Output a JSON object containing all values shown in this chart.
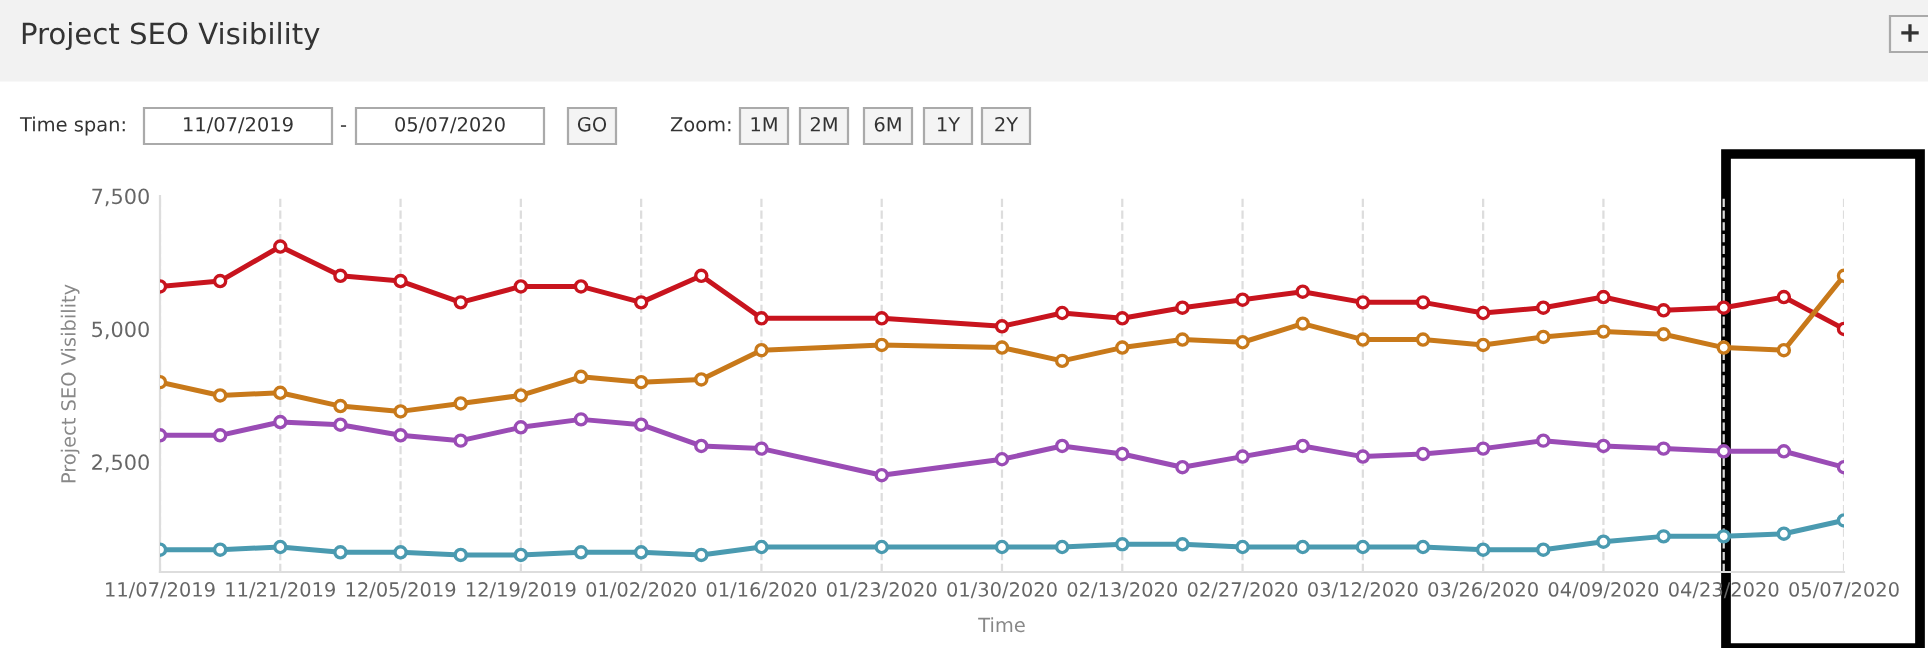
{
  "chart_data": {
    "type": "line",
    "title": "Project SEO Visibility",
    "xlabel": "Time",
    "ylabel": "Project SEO Visibility",
    "annotations": [
      "Time span:",
      "11/07/2019",
      "-",
      "05/07/2020",
      "GO",
      "Zoom:",
      "1M",
      "2M",
      "6M",
      "1Y",
      "2Y",
      "+"
    ],
    "categories": [
      "11/07/2019",
      null,
      "11/21/2019",
      null,
      "12/05/2019",
      null,
      "12/19/2019",
      null,
      "01/02/2020",
      null,
      "01/16/2020",
      null,
      "01/23/2020",
      null,
      "01/30/2020",
      null,
      "02/13/2020",
      null,
      "02/27/2020",
      null,
      "03/12/2020",
      null,
      "03/26/2020",
      null,
      "04/09/2020",
      null,
      "04/23/2020",
      null,
      "05/07/2020"
    ],
    "series": [
      {
        "color": "#c8141e",
        "values": [
          5800,
          5900,
          6550,
          6000,
          5900,
          5500,
          5800,
          5800,
          5500,
          6000,
          5200,
          null,
          5200,
          null,
          5050,
          5300,
          5200,
          5400,
          5550,
          5700,
          5500,
          5500,
          5300,
          5400,
          5600,
          5350,
          5400,
          5600,
          5000
        ]
      },
      {
        "color": "#c8791a",
        "values": [
          4000,
          3750,
          3800,
          3550,
          3450,
          3600,
          3750,
          4100,
          4000,
          4050,
          4600,
          null,
          4700,
          null,
          4650,
          4400,
          4650,
          4800,
          4750,
          5100,
          4800,
          4800,
          4700,
          4850,
          4950,
          4900,
          4650,
          4600,
          6000
        ]
      },
      {
        "color": "#9a4cb5",
        "values": [
          3000,
          3000,
          3250,
          3200,
          3000,
          2900,
          3150,
          3300,
          3200,
          2800,
          2750,
          null,
          2250,
          null,
          2550,
          2800,
          2650,
          2400,
          2600,
          2800,
          2600,
          2650,
          2750,
          2900,
          2800,
          2750,
          2700,
          2700,
          2400
        ]
      },
      {
        "color": "#4a9ab0",
        "values": [
          850,
          850,
          900,
          800,
          800,
          750,
          750,
          800,
          800,
          750,
          900,
          null,
          900,
          null,
          900,
          900,
          950,
          950,
          900,
          900,
          900,
          900,
          850,
          850,
          1000,
          1100,
          1100,
          1150,
          1400
        ]
      }
    ],
    "ylim": [
      430,
      7500
    ],
    "yticks": [
      {
        "value": 2500,
        "label": "2,500"
      },
      {
        "value": 5000,
        "label": "5,000"
      },
      {
        "value": 7500,
        "label": "7,500"
      }
    ],
    "grid": "x",
    "marker": "circle",
    "line_style": "solid",
    "legend": false
  }
}
